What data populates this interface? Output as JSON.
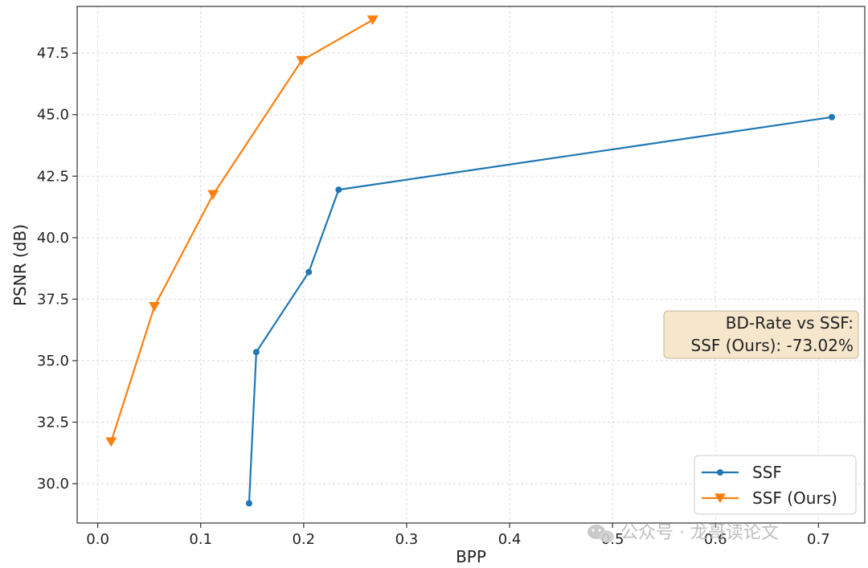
{
  "chart_data": {
    "type": "line",
    "title": "",
    "xlabel": "BPP",
    "ylabel": "PSNR (dB)",
    "xlim": [
      -0.02,
      0.745
    ],
    "ylim": [
      28.4,
      49.4
    ],
    "xticks": [
      0.0,
      0.1,
      0.2,
      0.3,
      0.4,
      0.5,
      0.6,
      0.7
    ],
    "xtick_labels": [
      "0.0",
      "0.1",
      "0.2",
      "0.3",
      "0.4",
      "0.5",
      "0.6",
      "0.7"
    ],
    "yticks": [
      30.0,
      32.5,
      35.0,
      37.5,
      40.0,
      42.5,
      45.0,
      47.5
    ],
    "ytick_labels": [
      "30.0",
      "32.5",
      "35.0",
      "37.5",
      "40.0",
      "42.5",
      "45.0",
      "47.5"
    ],
    "grid": true,
    "legend_position": "bottom-right",
    "series": [
      {
        "name": "SSF",
        "color": "#1f77b4",
        "marker": "circle",
        "x": [
          0.147,
          0.154,
          0.205,
          0.234,
          0.713
        ],
        "y": [
          29.2,
          35.35,
          38.6,
          41.95,
          44.9
        ]
      },
      {
        "name": "SSF (Ours)",
        "color": "#ff7f0e",
        "marker": "triangle-down",
        "x": [
          0.013,
          0.055,
          0.112,
          0.198,
          0.267
        ],
        "y": [
          31.7,
          37.2,
          41.75,
          47.2,
          48.85
        ]
      }
    ],
    "annotation": {
      "lines": [
        "BD-Rate vs SSF:",
        "SSF (Ours): -73.02%"
      ],
      "background": "#f5e6cc"
    }
  },
  "watermark": {
    "text": "公众号 · 龙哥读论文",
    "icon": "wechat-icon"
  }
}
